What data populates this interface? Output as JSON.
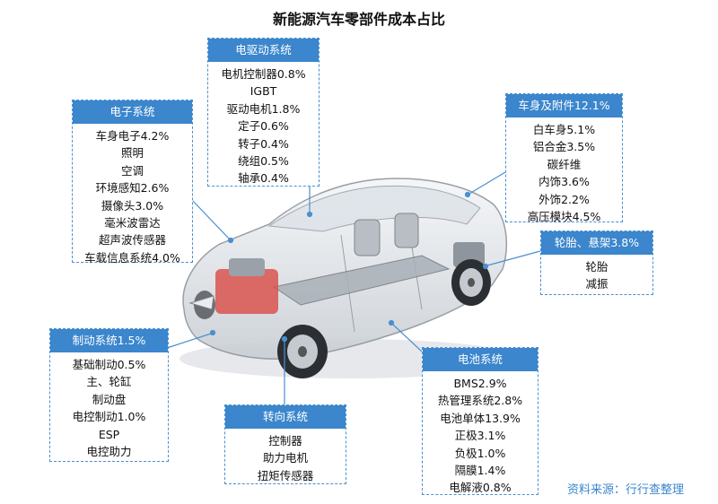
{
  "title": "新能源汽车零部件成本占比",
  "source": "资料来源：行行查整理",
  "colors": {
    "accent": "#3b86cc",
    "connector": "#4a90d0"
  },
  "groups": {
    "motor_drive": {
      "header": "电驱动系统",
      "items": [
        "电机控制器0.8%",
        "IGBT",
        "驱动电机1.8%",
        "定子0.6%",
        "转子0.4%",
        "绕组0.5%",
        "轴承0.4%"
      ]
    },
    "electronics": {
      "header": "电子系统",
      "items": [
        "车身电子4.2%",
        "照明",
        "空调",
        "环境感知2.6%",
        "摄像头3.0%",
        "毫米波雷达",
        "超声波传感器",
        "车载信息系统4.0%"
      ]
    },
    "body": {
      "header": "车身及附件12.1%",
      "items": [
        "白车身5.1%",
        "铝合金3.5%",
        "碳纤维",
        "内饰3.6%",
        "外饰2.2%",
        "高压模块4.5%"
      ]
    },
    "chassis": {
      "header": "轮胎、悬架3.8%",
      "items": [
        "轮胎",
        "减振"
      ]
    },
    "brake": {
      "header": "制动系统1.5%",
      "items": [
        "基础制动0.5%",
        "主、轮缸",
        "制动盘",
        "电控制动1.0%",
        "ESP",
        "电控助力"
      ]
    },
    "steering": {
      "header": "转向系统",
      "items": [
        "控制器",
        "助力电机",
        "扭矩传感器"
      ]
    },
    "battery": {
      "header": "电池系统",
      "items": [
        "BMS2.9%",
        "热管理系统2.8%",
        "电池单体13.9%",
        "正极3.1%",
        "负极1.0%",
        "隔膜1.4%",
        "电解液0.8%"
      ]
    }
  }
}
